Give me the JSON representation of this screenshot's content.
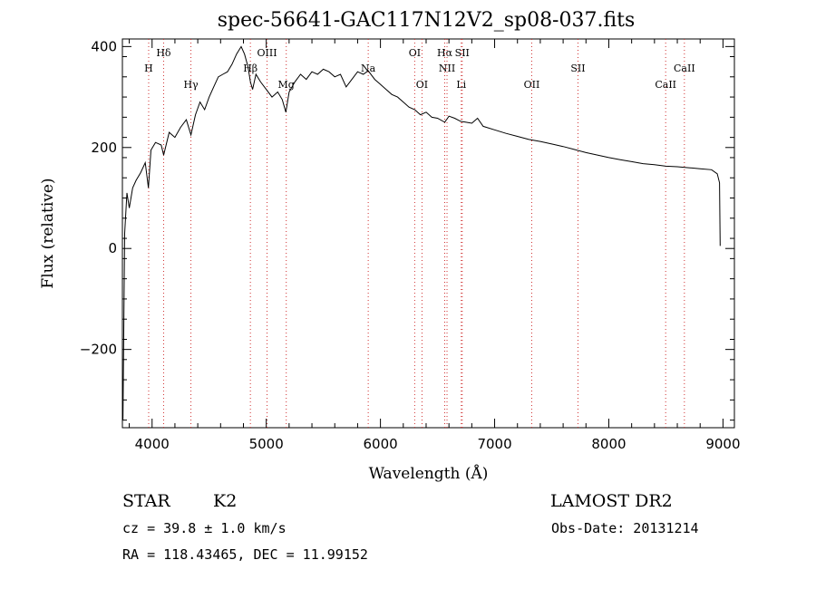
{
  "chart_data": {
    "type": "line",
    "title": "spec-56641-GAC117N12V2_sp08-037.fits",
    "xlabel": "Wavelength (Å)",
    "ylabel": "Flux (relative)",
    "xlim": [
      3740,
      9100
    ],
    "ylim": [
      -355,
      415
    ],
    "x_ticks": [
      4000,
      5000,
      6000,
      7000,
      8000,
      9000
    ],
    "y_ticks": [
      -200,
      0,
      200,
      400
    ],
    "grid": false,
    "series": [
      {
        "color": "#000000",
        "points": [
          [
            3745,
            -340
          ],
          [
            3760,
            30
          ],
          [
            3780,
            110
          ],
          [
            3800,
            80
          ],
          [
            3830,
            120
          ],
          [
            3860,
            135
          ],
          [
            3900,
            150
          ],
          [
            3940,
            170
          ],
          [
            3968,
            120
          ],
          [
            3990,
            195
          ],
          [
            4030,
            210
          ],
          [
            4080,
            205
          ],
          [
            4101,
            185
          ],
          [
            4150,
            230
          ],
          [
            4200,
            220
          ],
          [
            4250,
            240
          ],
          [
            4300,
            255
          ],
          [
            4340,
            225
          ],
          [
            4380,
            265
          ],
          [
            4420,
            290
          ],
          [
            4460,
            275
          ],
          [
            4500,
            300
          ],
          [
            4540,
            320
          ],
          [
            4580,
            340
          ],
          [
            4620,
            345
          ],
          [
            4660,
            350
          ],
          [
            4700,
            365
          ],
          [
            4740,
            385
          ],
          [
            4780,
            400
          ],
          [
            4810,
            385
          ],
          [
            4840,
            360
          ],
          [
            4861,
            330
          ],
          [
            4880,
            315
          ],
          [
            4910,
            345
          ],
          [
            4950,
            330
          ],
          [
            5000,
            315
          ],
          [
            5050,
            300
          ],
          [
            5100,
            310
          ],
          [
            5140,
            295
          ],
          [
            5172,
            270
          ],
          [
            5200,
            310
          ],
          [
            5250,
            330
          ],
          [
            5300,
            345
          ],
          [
            5350,
            335
          ],
          [
            5400,
            350
          ],
          [
            5450,
            345
          ],
          [
            5500,
            355
          ],
          [
            5550,
            350
          ],
          [
            5600,
            340
          ],
          [
            5650,
            345
          ],
          [
            5700,
            320
          ],
          [
            5750,
            335
          ],
          [
            5800,
            350
          ],
          [
            5850,
            345
          ],
          [
            5893,
            352
          ],
          [
            5950,
            335
          ],
          [
            6000,
            325
          ],
          [
            6050,
            315
          ],
          [
            6100,
            305
          ],
          [
            6150,
            300
          ],
          [
            6200,
            290
          ],
          [
            6250,
            280
          ],
          [
            6300,
            275
          ],
          [
            6350,
            265
          ],
          [
            6400,
            270
          ],
          [
            6450,
            260
          ],
          [
            6500,
            258
          ],
          [
            6563,
            250
          ],
          [
            6600,
            262
          ],
          [
            6650,
            258
          ],
          [
            6700,
            252
          ],
          [
            6750,
            250
          ],
          [
            6800,
            248
          ],
          [
            6850,
            258
          ],
          [
            6900,
            242
          ],
          [
            7000,
            235
          ],
          [
            7100,
            228
          ],
          [
            7200,
            222
          ],
          [
            7300,
            216
          ],
          [
            7400,
            212
          ],
          [
            7500,
            207
          ],
          [
            7600,
            202
          ],
          [
            7700,
            196
          ],
          [
            7800,
            190
          ],
          [
            7900,
            185
          ],
          [
            8000,
            180
          ],
          [
            8100,
            176
          ],
          [
            8200,
            172
          ],
          [
            8300,
            168
          ],
          [
            8400,
            166
          ],
          [
            8500,
            163
          ],
          [
            8600,
            162
          ],
          [
            8700,
            160
          ],
          [
            8800,
            158
          ],
          [
            8900,
            156
          ],
          [
            8950,
            148
          ],
          [
            8970,
            130
          ],
          [
            8975,
            5
          ]
        ]
      }
    ],
    "lines": [
      {
        "name": "H",
        "x": 3970,
        "row": 2
      },
      {
        "name": "Hδ",
        "x": 4101,
        "row": 1
      },
      {
        "name": "Hγ",
        "x": 4340,
        "row": 3
      },
      {
        "name": "Hβ",
        "x": 4861,
        "row": 2
      },
      {
        "name": "OIII",
        "x": 5007,
        "row": 1
      },
      {
        "name": "Mg",
        "x": 5175,
        "row": 3
      },
      {
        "name": "Na",
        "x": 5893,
        "row": 2
      },
      {
        "name": "OI",
        "x": 6300,
        "row": 1
      },
      {
        "name": "OI",
        "x": 6364,
        "row": 3
      },
      {
        "name": "Hα",
        "x": 6563,
        "row": 1
      },
      {
        "name": "NII",
        "x": 6583,
        "row": 2
      },
      {
        "name": "SII",
        "x": 6716,
        "row": 1
      },
      {
        "name": "Li",
        "x": 6708,
        "row": 3
      },
      {
        "name": "OII",
        "x": 7325,
        "row": 3
      },
      {
        "name": "SII",
        "x": 7730,
        "row": 2
      },
      {
        "name": "CaII",
        "x": 8498,
        "row": 3
      },
      {
        "name": "CaII",
        "x": 8662,
        "row": 2
      }
    ]
  },
  "info": {
    "class_label": "STAR",
    "subclass": "K2",
    "survey": "LAMOST DR2",
    "cz_text": "cz = 39.8 ± 1.0 km/s",
    "obs_date_text": "Obs-Date: 20131214",
    "radec_text": "RA = 118.43465, DEC =  11.99152"
  }
}
